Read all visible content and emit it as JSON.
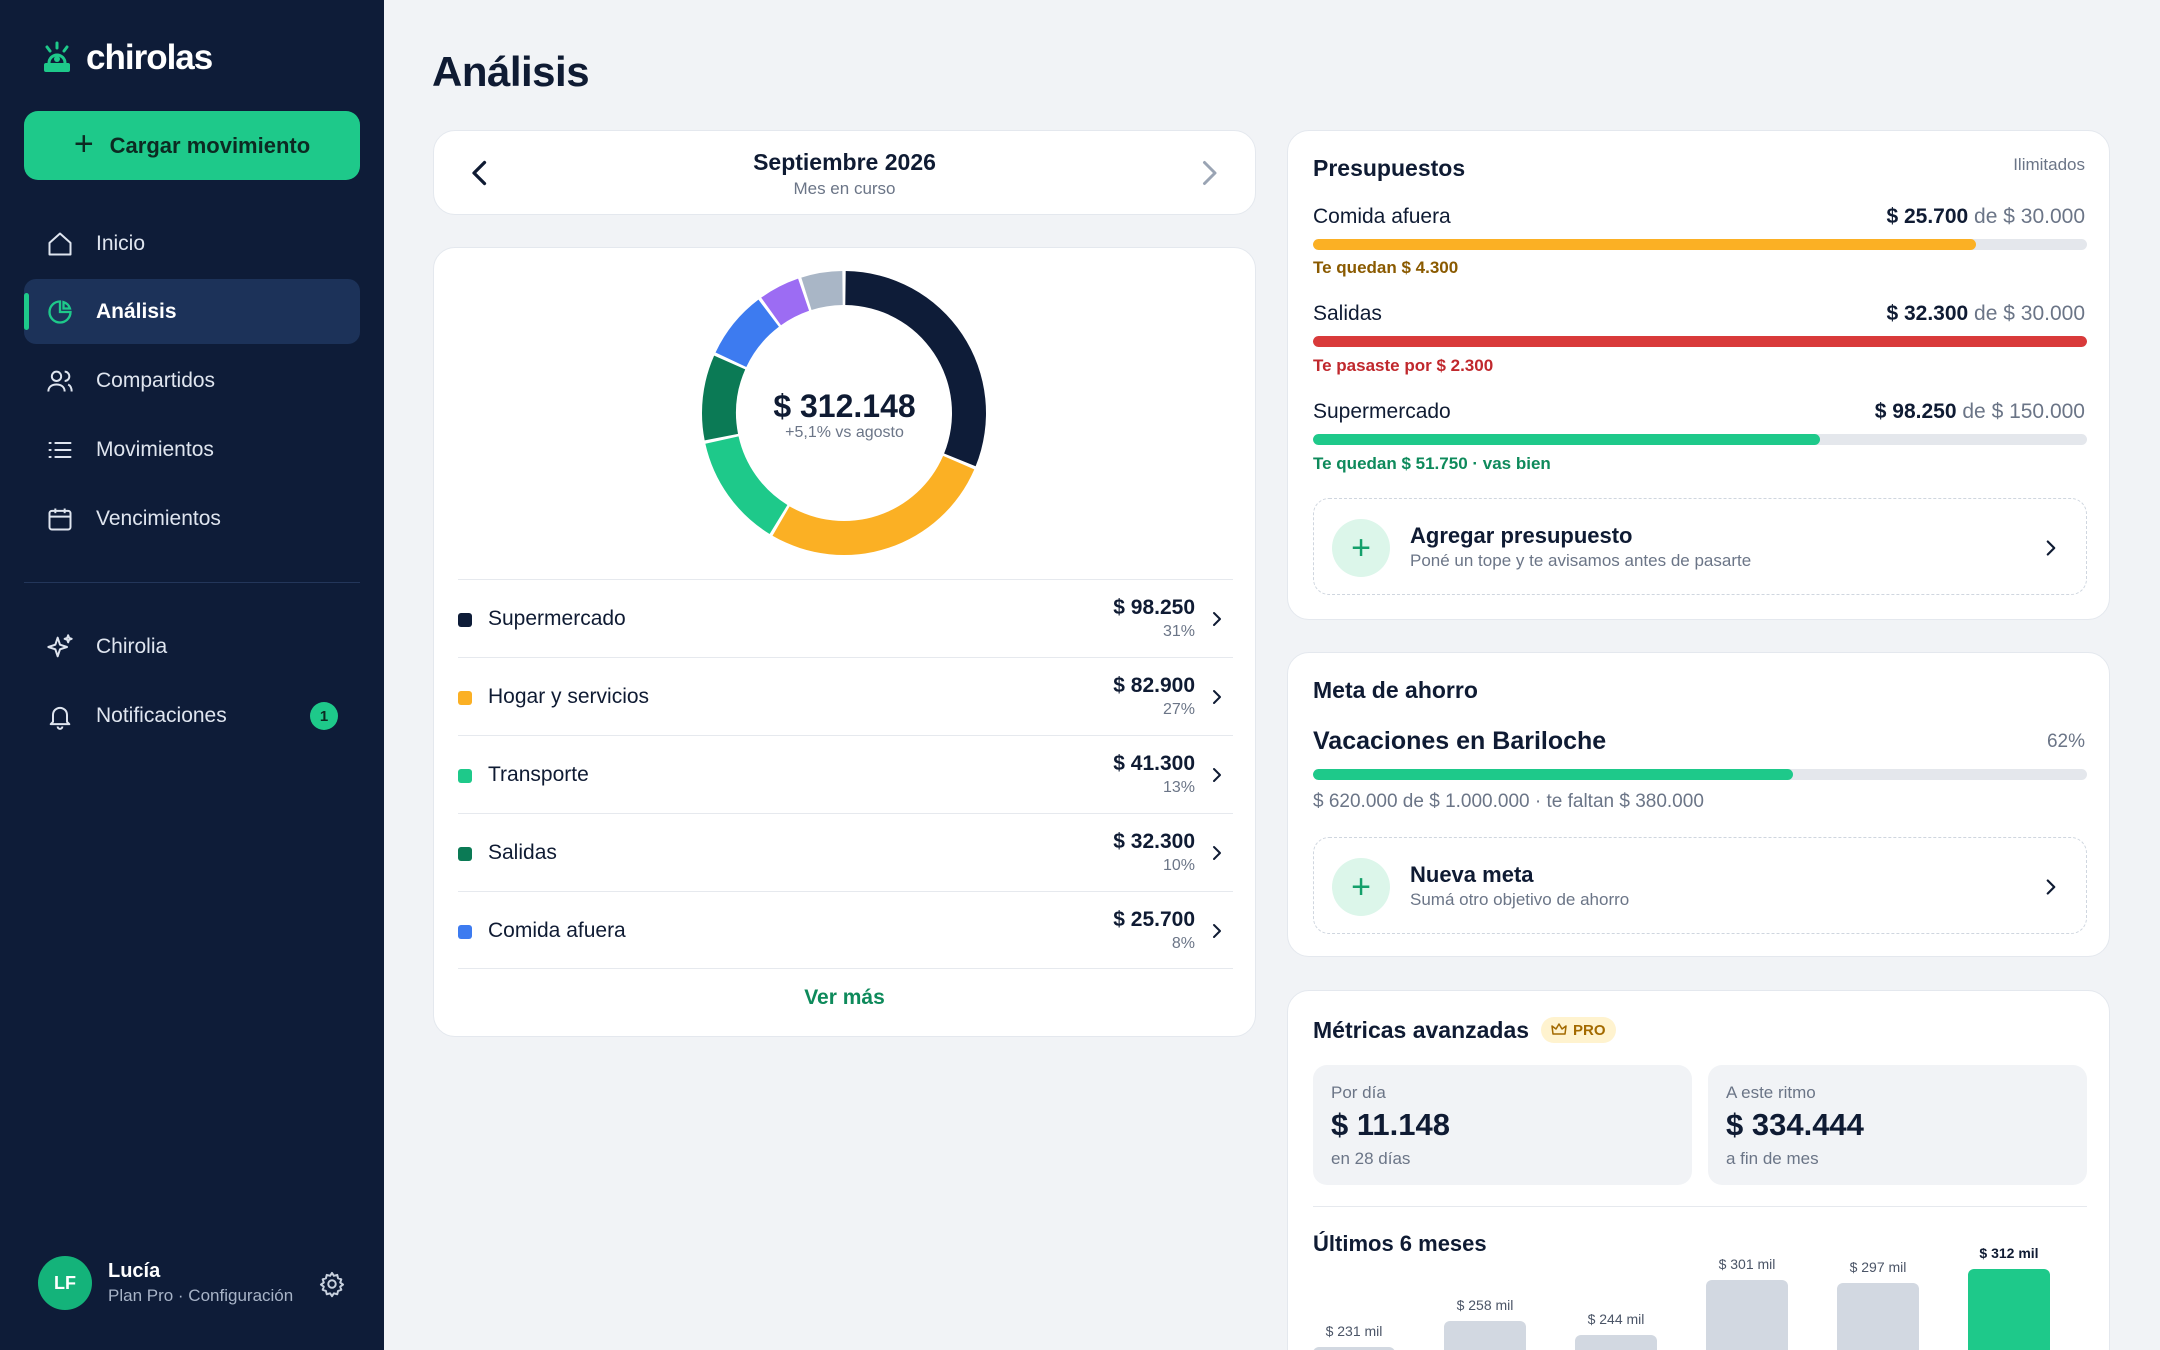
{
  "app": {
    "name": "chirolas"
  },
  "sidebar": {
    "cta_label": "Cargar movimiento",
    "items": [
      {
        "label": "Inicio",
        "icon": "home-icon"
      },
      {
        "label": "Análisis",
        "icon": "pie-chart-icon",
        "active": true
      },
      {
        "label": "Compartidos",
        "icon": "users-icon"
      },
      {
        "label": "Movimientos",
        "icon": "list-icon"
      },
      {
        "label": "Vencimientos",
        "icon": "calendar-icon"
      }
    ],
    "secondary": [
      {
        "label": "Chirolia",
        "icon": "sparkle-icon"
      },
      {
        "label": "Notificaciones",
        "icon": "bell-icon",
        "badge": "1"
      }
    ],
    "user": {
      "initials": "LF",
      "name": "Lucía",
      "sub": "Plan Pro · Configuración"
    }
  },
  "page": {
    "title": "Análisis"
  },
  "month": {
    "title": "Septiembre 2026",
    "subtitle": "Mes en curso"
  },
  "spending": {
    "total": "$ 312.148",
    "comparison": "+5,1% vs agosto",
    "donut_segments": [
      {
        "name": "Supermercado",
        "percent": 31,
        "color": "#0e1c38"
      },
      {
        "name": "Hogar y servicios",
        "percent": 27,
        "color": "#fbb024"
      },
      {
        "name": "Transporte",
        "percent": 13,
        "color": "#1ec98a"
      },
      {
        "name": "Salidas",
        "percent": 10,
        "color": "#0b7a55"
      },
      {
        "name": "Comida afuera",
        "percent": 8,
        "color": "#3d7bf0"
      },
      {
        "name": "other-purple",
        "percent": 5,
        "color": "#9c6cf3"
      },
      {
        "name": "other-gray",
        "percent": 5,
        "color": "#a9b6c6"
      }
    ],
    "categories": [
      {
        "name": "Supermercado",
        "amount": "$ 98.250",
        "pct": "31%",
        "color": "#0e1c38"
      },
      {
        "name": "Hogar y servicios",
        "amount": "$ 82.900",
        "pct": "27%",
        "color": "#fbb024"
      },
      {
        "name": "Transporte",
        "amount": "$ 41.300",
        "pct": "13%",
        "color": "#1ec98a"
      },
      {
        "name": "Salidas",
        "amount": "$ 32.300",
        "pct": "10%",
        "color": "#0b7a55"
      },
      {
        "name": "Comida afuera",
        "amount": "$ 25.700",
        "pct": "8%",
        "color": "#3d7bf0"
      }
    ],
    "more_label": "Ver más"
  },
  "budgets": {
    "title": "Presupuestos",
    "tag": "Ilimitados",
    "items": [
      {
        "name": "Comida afuera",
        "spent": "$ 25.700",
        "of_label": "de",
        "limit": "$ 30.000",
        "progress": 0.857,
        "color": "#fbb024",
        "note": "Te quedan $ 4.300",
        "note_color": "#8a5a00"
      },
      {
        "name": "Salidas",
        "spent": "$ 32.300",
        "of_label": "de",
        "limit": "$ 30.000",
        "progress": 1.0,
        "color": "#d93a3a",
        "note": "Te pasaste por $ 2.300",
        "note_color": "#c0282d"
      },
      {
        "name": "Supermercado",
        "spent": "$ 98.250",
        "of_label": "de",
        "limit": "$ 150.000",
        "progress": 0.655,
        "color": "#1ec98a",
        "note": "Te quedan $ 51.750 · vas bien",
        "note_color": "#0e8a5b"
      }
    ],
    "add": {
      "title": "Agregar presupuesto",
      "subtitle": "Poné un tope y te avisamos antes de pasarte"
    }
  },
  "goal": {
    "title": "Meta de ahorro",
    "name": "Vacaciones en Bariloche",
    "percent_label": "62%",
    "progress": 0.62,
    "note": "$ 620.000 de $ 1.000.000 · te faltan $ 380.000",
    "add": {
      "title": "Nueva meta",
      "subtitle": "Sumá otro objetivo de ahorro"
    }
  },
  "metrics": {
    "title": "Métricas avanzadas",
    "badge": "PRO",
    "per_day": {
      "label": "Por día",
      "value": "$ 11.148",
      "sub": "en 28 días"
    },
    "pace": {
      "label": "A este ritmo",
      "value": "$ 334.444",
      "sub": "a fin de mes"
    },
    "bars_title": "Últimos 6 meses",
    "bars": [
      {
        "label": "$ 231 mil",
        "value": 231
      },
      {
        "label": "$ 258 mil",
        "value": 258
      },
      {
        "label": "$ 244 mil",
        "value": 244
      },
      {
        "label": "$ 301 mil",
        "value": 301
      },
      {
        "label": "$ 297 mil",
        "value": 297
      },
      {
        "label": "$ 312 mil",
        "value": 312,
        "current": true
      }
    ]
  }
}
